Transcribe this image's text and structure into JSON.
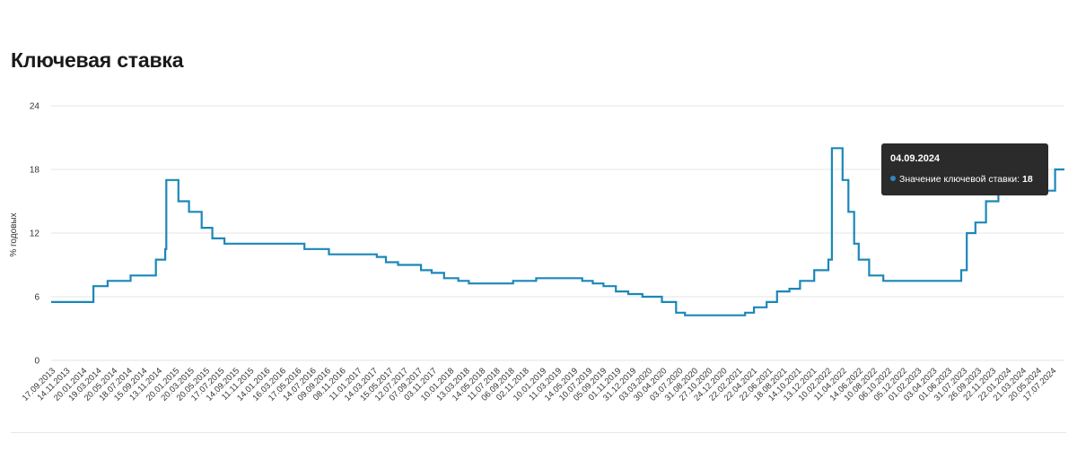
{
  "page": {
    "title": "Ключевая ставка"
  },
  "tooltip": {
    "date": "04.09.2024",
    "label": "Значение ключевой ставки:",
    "value": "18"
  },
  "chart_data": {
    "type": "line",
    "step": true,
    "title": "Ключевая ставка",
    "ylabel": "% годовых",
    "xlabel": "",
    "ylim": [
      0,
      24
    ],
    "yticks": [
      0,
      6,
      12,
      18,
      24
    ],
    "xlim": [
      "2013-09-17",
      "2024-09-04"
    ],
    "grid": true,
    "line_color": "#1b87b8",
    "xticks": [
      "17.09.2013",
      "14.11.2013",
      "20.01.2014",
      "19.03.2014",
      "20.05.2014",
      "18.07.2014",
      "15.09.2014",
      "13.11.2014",
      "20.01.2015",
      "20.03.2015",
      "20.05.2015",
      "17.07.2015",
      "14.09.2015",
      "11.11.2015",
      "14.01.2016",
      "16.03.2016",
      "17.05.2016",
      "14.07.2016",
      "09.09.2016",
      "08.11.2016",
      "11.01.2017",
      "14.03.2017",
      "15.05.2017",
      "12.07.2017",
      "07.09.2017",
      "03.11.2017",
      "10.01.2018",
      "13.03.2018",
      "14.05.2018",
      "11.07.2018",
      "06.09.2018",
      "02.11.2018",
      "10.01.2019",
      "11.03.2019",
      "14.05.2019",
      "10.07.2019",
      "05.09.2019",
      "01.11.2019",
      "31.12.2019",
      "03.03.2020",
      "30.04.2020",
      "03.07.2020",
      "31.08.2020",
      "27.10.2020",
      "24.12.2020",
      "22.02.2021",
      "22.04.2021",
      "22.06.2021",
      "18.08.2021",
      "14.10.2021",
      "13.12.2021",
      "10.02.2022",
      "11.04.2022",
      "14.06.2022",
      "10.08.2022",
      "06.10.2022",
      "05.12.2022",
      "01.02.2023",
      "03.04.2023",
      "01.06.2023",
      "31.07.2023",
      "26.09.2023",
      "22.11.2023",
      "22.01.2024",
      "21.03.2024",
      "20.05.2024",
      "17.07.2024"
    ],
    "series": [
      {
        "values": [
          [
            "2013-09-17",
            5.5
          ],
          [
            "2014-03-03",
            7.0
          ],
          [
            "2014-04-28",
            7.5
          ],
          [
            "2014-07-28",
            8.0
          ],
          [
            "2014-11-05",
            9.5
          ],
          [
            "2014-12-12",
            10.5
          ],
          [
            "2014-12-16",
            17.0
          ],
          [
            "2015-02-02",
            15.0
          ],
          [
            "2015-03-16",
            14.0
          ],
          [
            "2015-05-05",
            12.5
          ],
          [
            "2015-06-16",
            11.5
          ],
          [
            "2015-08-03",
            11.0
          ],
          [
            "2016-06-14",
            10.5
          ],
          [
            "2016-09-19",
            10.0
          ],
          [
            "2017-03-27",
            9.75
          ],
          [
            "2017-05-02",
            9.25
          ],
          [
            "2017-06-19",
            9.0
          ],
          [
            "2017-09-18",
            8.5
          ],
          [
            "2017-10-30",
            8.25
          ],
          [
            "2017-12-18",
            7.75
          ],
          [
            "2018-02-12",
            7.5
          ],
          [
            "2018-03-26",
            7.25
          ],
          [
            "2018-09-17",
            7.5
          ],
          [
            "2018-12-17",
            7.75
          ],
          [
            "2019-06-17",
            7.5
          ],
          [
            "2019-07-29",
            7.25
          ],
          [
            "2019-09-09",
            7.0
          ],
          [
            "2019-10-28",
            6.5
          ],
          [
            "2019-12-16",
            6.25
          ],
          [
            "2020-02-10",
            6.0
          ],
          [
            "2020-04-27",
            5.5
          ],
          [
            "2020-06-22",
            4.5
          ],
          [
            "2020-07-27",
            4.25
          ],
          [
            "2021-03-22",
            4.5
          ],
          [
            "2021-04-26",
            5.0
          ],
          [
            "2021-06-15",
            5.5
          ],
          [
            "2021-07-26",
            6.5
          ],
          [
            "2021-09-13",
            6.75
          ],
          [
            "2021-10-25",
            7.5
          ],
          [
            "2021-12-20",
            8.5
          ],
          [
            "2022-02-14",
            9.5
          ],
          [
            "2022-02-28",
            20.0
          ],
          [
            "2022-04-11",
            17.0
          ],
          [
            "2022-05-04",
            14.0
          ],
          [
            "2022-05-27",
            11.0
          ],
          [
            "2022-06-14",
            9.5
          ],
          [
            "2022-07-25",
            8.0
          ],
          [
            "2022-09-19",
            7.5
          ],
          [
            "2023-07-24",
            8.5
          ],
          [
            "2023-08-15",
            12.0
          ],
          [
            "2023-09-18",
            13.0
          ],
          [
            "2023-10-30",
            15.0
          ],
          [
            "2023-12-18",
            16.0
          ],
          [
            "2024-07-29",
            18.0
          ],
          [
            "2024-09-04",
            18.0
          ]
        ]
      }
    ]
  }
}
